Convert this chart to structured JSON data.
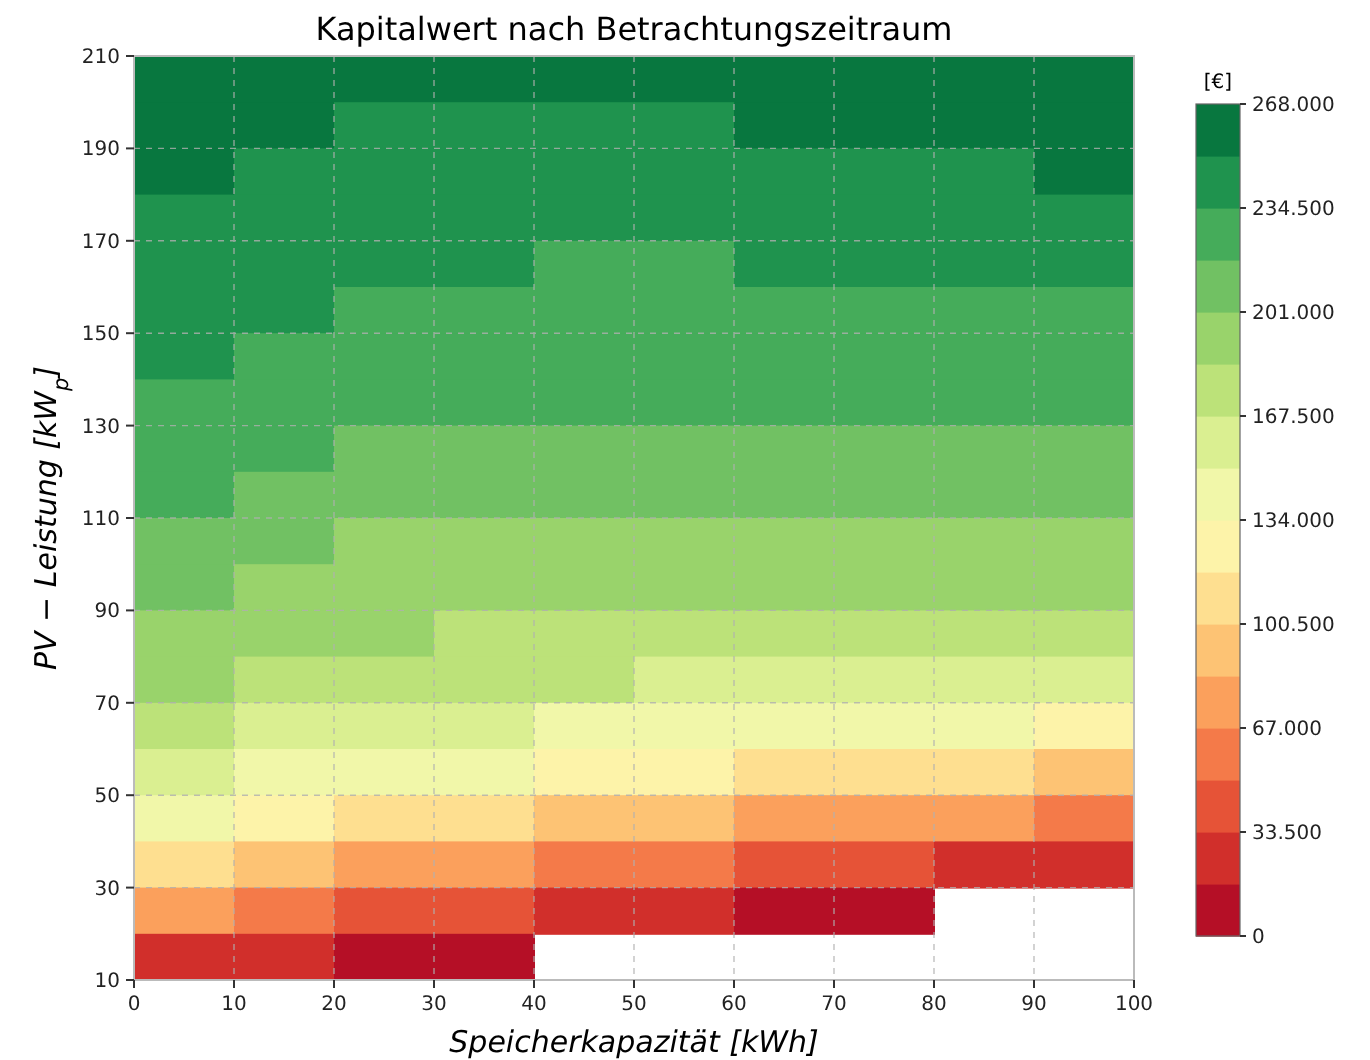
{
  "chart_data": {
    "type": "heatmap",
    "title": "Kapitalwert nach Betrachtungszeitraum",
    "xlabel": "Speicherkapazität [kWh]",
    "ylabel": "PV − Leistung [kW$_{p}$]",
    "clabel": "[€]",
    "x": [
      5,
      15,
      25,
      35,
      45,
      55,
      65,
      75,
      85,
      95
    ],
    "y": [
      205,
      195,
      185,
      175,
      165,
      155,
      145,
      135,
      125,
      115,
      105,
      95,
      85,
      75,
      65,
      55,
      45,
      35,
      25,
      15
    ],
    "xlim": [
      0,
      100
    ],
    "xticks": [
      0,
      10,
      20,
      30,
      40,
      50,
      60,
      70,
      80,
      90,
      100
    ],
    "ylim": [
      10,
      210
    ],
    "yticks": [
      10,
      30,
      50,
      70,
      90,
      110,
      130,
      150,
      170,
      190,
      210
    ],
    "clim": [
      0,
      268000
    ],
    "cticks": [
      {
        "value": 0,
        "label": "0"
      },
      {
        "value": 33500,
        "label": "33.500"
      },
      {
        "value": 67000,
        "label": "67.000"
      },
      {
        "value": 100500,
        "label": "100.500"
      },
      {
        "value": 134000,
        "label": "134.000"
      },
      {
        "value": 167500,
        "label": "167.500"
      },
      {
        "value": 201000,
        "label": "201.000"
      },
      {
        "value": 234500,
        "label": "234.500"
      },
      {
        "value": 268000,
        "label": "268.000"
      }
    ],
    "grid": true,
    "cells": [
      [
        265000,
        257000,
        253000,
        252000,
        253000,
        254000,
        257000,
        260000,
        262000,
        264000
      ],
      [
        259000,
        252000,
        249000,
        248000,
        248000,
        249000,
        252000,
        254000,
        257000,
        258000
      ],
      [
        254000,
        248000,
        244000,
        242000,
        243000,
        244000,
        246000,
        249000,
        250000,
        253000
      ],
      [
        249000,
        244000,
        240000,
        239000,
        239000,
        239000,
        241000,
        243000,
        245000,
        247000
      ],
      [
        245000,
        240000,
        236000,
        235000,
        234000,
        234000,
        235000,
        237000,
        239000,
        240000
      ],
      [
        242000,
        236000,
        231000,
        230000,
        229000,
        229000,
        230000,
        231000,
        233000,
        234000
      ],
      [
        238000,
        231000,
        226000,
        225000,
        225000,
        225000,
        225000,
        226000,
        227000,
        227000
      ],
      [
        234000,
        226000,
        222000,
        220000,
        220000,
        220000,
        220000,
        220000,
        220000,
        220000
      ],
      [
        226000,
        220000,
        216000,
        214000,
        212000,
        212000,
        211000,
        211000,
        211000,
        211000
      ],
      [
        219000,
        213000,
        207000,
        204000,
        202000,
        202000,
        202000,
        202000,
        202000,
        202000
      ],
      [
        212000,
        206000,
        199000,
        196000,
        195000,
        194000,
        194000,
        194000,
        194000,
        193000
      ],
      [
        206000,
        199000,
        192000,
        190000,
        188000,
        187000,
        187000,
        187000,
        187000,
        186000
      ],
      [
        200000,
        190000,
        185000,
        181000,
        179000,
        178000,
        177000,
        176000,
        175000,
        171000
      ],
      [
        186000,
        179000,
        173000,
        170000,
        168000,
        165000,
        163000,
        161000,
        158000,
        154000
      ],
      [
        172000,
        165000,
        158000,
        153000,
        150000,
        147000,
        143000,
        141000,
        136000,
        129000
      ],
      [
        155000,
        147000,
        140000,
        135000,
        127000,
        120000,
        115000,
        109000,
        102000,
        94000
      ],
      [
        136000,
        124000,
        112000,
        102000,
        94000,
        87000,
        80000,
        74000,
        68000,
        60000
      ],
      [
        103000,
        90000,
        79000,
        69000,
        60000,
        53000,
        46000,
        39000,
        32000,
        25000
      ],
      [
        68000,
        57000,
        46000,
        36000,
        27000,
        20000,
        11000,
        4000,
        null,
        null
      ],
      [
        33000,
        23000,
        13000,
        2000,
        null,
        null,
        null,
        null,
        null,
        null
      ]
    ]
  }
}
